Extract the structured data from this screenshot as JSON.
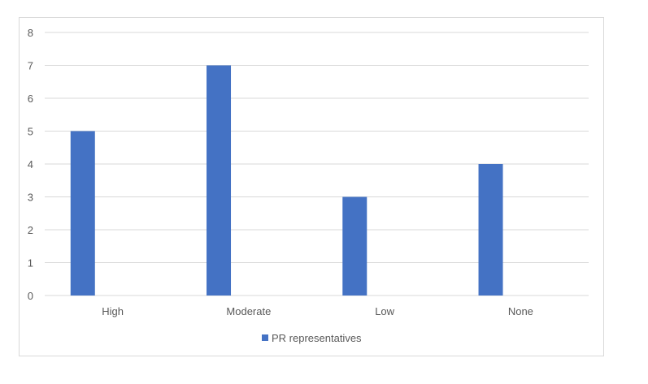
{
  "chart_data": {
    "type": "bar",
    "categories": [
      "High",
      "Moderate",
      "Low",
      "None"
    ],
    "series": [
      {
        "name": "PR representatives",
        "values": [
          5,
          7,
          3,
          4
        ],
        "color": "#4472c4"
      }
    ],
    "ylim": [
      0,
      8
    ],
    "yticks": [
      "0",
      "1",
      "2",
      "3",
      "4",
      "5",
      "6",
      "7",
      "8"
    ],
    "grid": true,
    "legend_position": "bottom",
    "gridline_color": "#d9d9d9"
  }
}
